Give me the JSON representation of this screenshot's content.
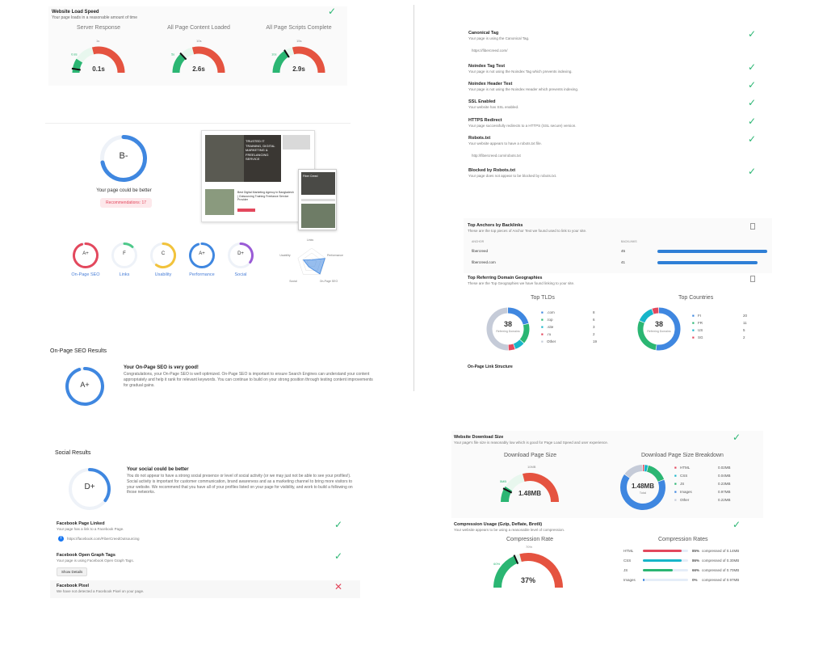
{
  "load_speed": {
    "title": "Website Load Speed",
    "desc": "Your page loads in a reasonable amount of time",
    "gauges": [
      {
        "title": "Server Response",
        "value": "0.1s",
        "low": "0.8s",
        "high": "1s",
        "fraction": 0.05
      },
      {
        "title": "All Page Content Loaded",
        "value": "2.6s",
        "low": "5s",
        "high": "10s",
        "fraction": 0.26
      },
      {
        "title": "All Page Scripts Complete",
        "value": "2.9s",
        "low": "10s",
        "high": "15s",
        "fraction": 0.32
      }
    ]
  },
  "overview": {
    "grade": "B-",
    "message": "Your page could be better",
    "recommendations": "Recommendations: 17",
    "thumb": {
      "h1": "TRUSTED IT TRAINING, DIGITAL MARKETING & FREELANCING SERVICE",
      "h2": "Best Digital Marketing Agency in Bangladesh | Outsourcing Training Freelance Service Provider",
      "h3": "Fiber Creed"
    },
    "categories": [
      {
        "grade": "A+",
        "label": "On-Page SEO",
        "color": "#e3485d",
        "frac": 0.95
      },
      {
        "grade": "F",
        "label": "Links",
        "color": "#4ec98a",
        "frac": 0.12
      },
      {
        "grade": "C",
        "label": "Usability",
        "color": "#f2c33c",
        "frac": 0.6
      },
      {
        "grade": "A+",
        "label": "Performance",
        "color": "#3f87e0",
        "frac": 0.95
      },
      {
        "grade": "D+",
        "label": "Social",
        "color": "#9a5bd6",
        "frac": 0.35
      }
    ],
    "radar_labels": [
      "Links",
      "Performance",
      "On-Page SEO",
      "Social",
      "Usability"
    ]
  },
  "onpage": {
    "section_title": "On-Page SEO Results",
    "grade": "A+",
    "headline": "Your On-Page SEO is very good!",
    "body": "Congratulations, your On-Page SEO is well optimized. On-Page SEO is important to ensure Search Engines can understand your content appropriately and help it rank for relevant keywords. You can continue to build on your strong position through testing content improvements for gradual gains."
  },
  "checks": [
    {
      "title": "Canonical Tag",
      "desc": "Your page is using the Canonical Tag.",
      "extra": "https://fibercreed.com/"
    },
    {
      "title": "Noindex Tag Test",
      "desc": "Your page is not using the Noindex Tag which prevents indexing."
    },
    {
      "title": "Noindex Header Test",
      "desc": "Your page is not using the Noindex Header which prevents indexing."
    },
    {
      "title": "SSL Enabled",
      "desc": "Your website has SSL enabled."
    },
    {
      "title": "HTTPS Redirect",
      "desc": "Your page successfully redirects to a HTTPS (SSL secure) version."
    },
    {
      "title": "Robots.txt",
      "desc": "Your website appears to have a robots.txt file.",
      "extra": "http://fibercreed.com/robots.txt"
    },
    {
      "title": "Blocked by Robots.txt",
      "desc": "Your page does not appear to be blocked by robots.txt."
    }
  ],
  "anchors": {
    "title": "Top Anchors by Backlinks",
    "desc": "These are the top pieces of Anchor Text we found used to link to your site.",
    "col_anchor": "ANCHOR",
    "col_backlinks": "BACKLINKS",
    "rows": [
      {
        "anchor": "fibercreed",
        "count": "45",
        "frac": 1.0
      },
      {
        "anchor": "fibercreed.com",
        "count": "41",
        "frac": 0.91
      }
    ]
  },
  "geo": {
    "title": "Top Referring Domain Geographies",
    "desc": "These are the Top Geographies we have found linking to your site.",
    "tlds_title": "Top TLDs",
    "countries_title": "Top Countries",
    "total": "38",
    "total_label": "Referring Domains",
    "tlds": [
      {
        "name": ".com",
        "value": "8",
        "color": "#3f87e0"
      },
      {
        "name": ".top",
        "value": "6",
        "color": "#2bb673"
      },
      {
        "name": ".site",
        "value": "3",
        "color": "#17b5c9"
      },
      {
        "name": ".ru",
        "value": "2",
        "color": "#e3485d"
      },
      {
        "name": "Other",
        "value": "19",
        "color": "#c5cbd8"
      }
    ],
    "countries": [
      {
        "name": "FI",
        "value": "20",
        "color": "#3f87e0"
      },
      {
        "name": "FR",
        "value": "11",
        "color": "#2bb673"
      },
      {
        "name": "US",
        "value": "5",
        "color": "#17b5c9"
      },
      {
        "name": "SG",
        "value": "2",
        "color": "#e3485d"
      }
    ],
    "cut_title": "On-Page Link Structure"
  },
  "social": {
    "section_title": "Social Results",
    "grade": "D+",
    "headline": "Your social could be better",
    "body": "You do not appear to have a strong social presence or level of social activity (or we may just not be able to see your profiles!). Social activity is important for customer communication, brand awareness and as a marketing channel to bring more visitors to your website. We recommend that you have all of your profiles listed on your page for visibility, and work to build a following on those networks.",
    "items": [
      {
        "title": "Facebook Page Linked",
        "desc": "Your page has a link to a Facebook Page.",
        "link": "https://facebook.com/FiberCreedOutsourcing",
        "status": "ok"
      },
      {
        "title": "Facebook Open Graph Tags",
        "desc": "Your page is using Facebook Open Graph Tags.",
        "button": "Show Details",
        "status": "ok"
      },
      {
        "title": "Facebook Pixel",
        "desc": "We have not detected a Facebook Pixel on your page.",
        "status": "fail"
      }
    ]
  },
  "download": {
    "title": "Website Download Size",
    "desc": "Your page's file size is reasonably low which is good for Page Load Speed and user experience.",
    "gauge_title": "Download Page Size",
    "gauge_value": "1.48MB",
    "gauge_low": "5MB",
    "gauge_high": "10MB",
    "fraction": 0.15,
    "breakdown_title": "Download Page Size Breakdown",
    "breakdown_value": "1.48MB",
    "breakdown_label": "Total",
    "breakdown": [
      {
        "name": "HTML",
        "value": "0.02MB",
        "color": "#e3485d"
      },
      {
        "name": "CSS",
        "value": "0.04MB",
        "color": "#17b5c9"
      },
      {
        "name": "JS",
        "value": "0.23MB",
        "color": "#2bb673"
      },
      {
        "name": "Images",
        "value": "0.97MB",
        "color": "#3f87e0"
      },
      {
        "name": "Other",
        "value": "0.22MB",
        "color": "#c5cbd8"
      }
    ]
  },
  "compression": {
    "title": "Compression Usage (Gzip, Deflate, Brotli)",
    "desc": "Your website appears to be using a reasonable level of compression.",
    "rate_title": "Compression Rate",
    "rate_value": "37%",
    "rate_low": "60%",
    "rate_high": "70%",
    "fraction": 0.37,
    "rates_title": "Compression Rates",
    "rates": [
      {
        "name": "HTML",
        "pct": "85%",
        "note": "compressed of 0.14MB",
        "color": "#e3485d",
        "frac": 0.85
      },
      {
        "name": "CSS",
        "pct": "86%",
        "note": "compressed of 0.30MB",
        "color": "#17b5c9",
        "frac": 0.86
      },
      {
        "name": "JS",
        "pct": "66%",
        "note": "compressed of 0.70MB",
        "color": "#2bb673",
        "frac": 0.66
      },
      {
        "name": "Images",
        "pct": "0%",
        "note": "compressed of 0.97MB",
        "color": "#3f87e0",
        "frac": 0.0
      }
    ]
  }
}
